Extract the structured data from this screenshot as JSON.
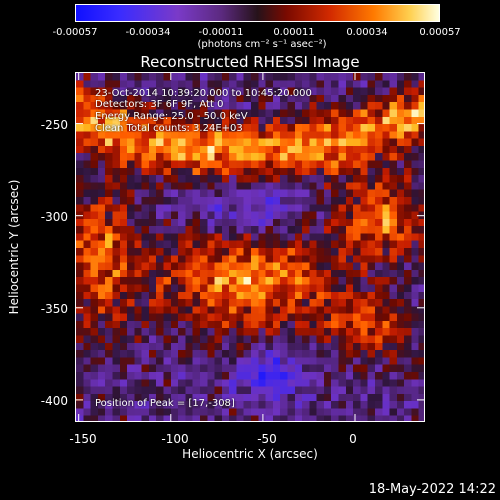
{
  "colorbar": {
    "ticks": [
      "-0.00057",
      "-0.00034",
      "-0.00011",
      "0.00011",
      "0.00034",
      "0.00057"
    ],
    "unit": "(photons cm⁻² s⁻¹ asec⁻²)"
  },
  "chart_data": {
    "type": "heatmap",
    "title": "Reconstructed RHESSI Image",
    "xlabel": "Heliocentric X (arcsec)",
    "ylabel": "Heliocentric Y (arcsec)",
    "xlim": [
      -152,
      38
    ],
    "ylim": [
      -412,
      -222
    ],
    "x_ticks": [
      "-150",
      "-100",
      "-50",
      "0"
    ],
    "y_ticks": [
      "-250",
      "-300",
      "-350",
      "-400"
    ],
    "x_tick_values": [
      -150,
      -100,
      -50,
      0
    ],
    "y_tick_values": [
      -250,
      -300,
      -350,
      -400
    ],
    "color_range": [
      -0.00057,
      0.00057
    ],
    "annotations": [
      "23-Oct-2014 10:39:20.000 to 10:45:20.000",
      "Detectors: 3F 6F 9F, Att 0",
      "Energy Range: 25.0 - 50.0 keV",
      "Clean     Total counts: 3.24E+03"
    ],
    "peak_label": "Position of Peak = [17,-308]",
    "peak_position": [
      17,
      -308
    ]
  },
  "timestamp": "18-May-2022 14:22"
}
